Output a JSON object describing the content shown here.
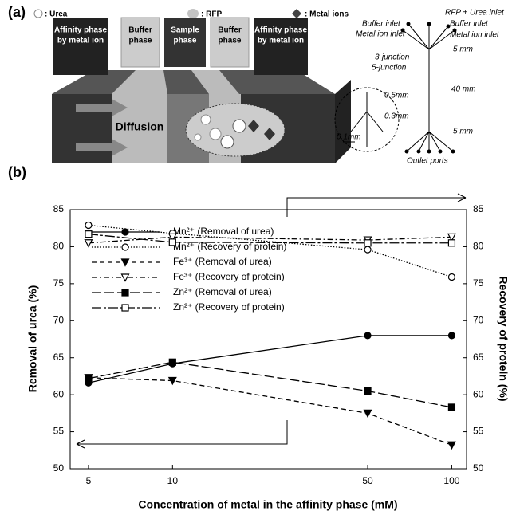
{
  "diagram": {
    "panel_label": "(a)",
    "legend": [
      ": Urea",
      ": RFP",
      ": Metal ions"
    ],
    "phases": [
      [
        "Affinity phase",
        "by metal ion"
      ],
      [
        "Buffer",
        "phase"
      ],
      [
        "Sample",
        "phase"
      ],
      [
        "Buffer",
        "phase"
      ],
      [
        "Affinity phase",
        "by metal ion"
      ]
    ],
    "flow_label": "Diffusion",
    "chip_labels": [
      "Buffer inlet",
      "Metal ion inlet",
      "RFP + Urea inlet",
      "Buffer inlet",
      "Metal ion inlet",
      "3-junction",
      "5-junction",
      "5 mm",
      "40 mm",
      "5 mm",
      "0.5mm",
      "0.3mm",
      "0.1mm",
      "Outlet ports"
    ]
  },
  "chart_data": {
    "type": "line",
    "panel_label": "(b)",
    "xlabel": "Concentration of metal in the affinity phase (mM)",
    "ylabel": "Removal of urea (%)",
    "y2label": "Recovery of protein (%)",
    "x": [
      5,
      10,
      50,
      100
    ],
    "xscale": "log",
    "xlim": [
      4.3,
      113
    ],
    "xticks": [
      5,
      10,
      50,
      100
    ],
    "ylim": [
      50,
      85
    ],
    "yticks": [
      50,
      55,
      60,
      65,
      70,
      75,
      80,
      85
    ],
    "y2lim": [
      50,
      85
    ],
    "y2ticks": [
      50,
      55,
      60,
      65,
      70,
      75,
      80,
      85
    ],
    "grid": false,
    "legend": "upper left",
    "series": [
      {
        "name": "Mn²⁺ (Removal of urea)",
        "color": "#000000",
        "marker": "circle",
        "filled": true,
        "line_style": "solid",
        "values": [
          61.6,
          64.2,
          68.0,
          68.0
        ]
      },
      {
        "name": "Mn²⁺ (Recovery of protein)",
        "color": "#000000",
        "marker": "circle",
        "filled": false,
        "line_style": "dotted",
        "axis": "y2",
        "values": [
          82.9,
          81.8,
          79.6,
          75.9
        ]
      },
      {
        "name": "Fe³⁺ (Removal of urea)",
        "color": "#000000",
        "marker": "triangle-down",
        "filled": true,
        "line_style": "dashed",
        "values": [
          62.3,
          61.9,
          57.5,
          53.2
        ]
      },
      {
        "name": "Fe³⁺ (Recovery of protein)",
        "color": "#000000",
        "marker": "triangle-down",
        "filled": false,
        "line_style": "dashdot",
        "axis": "y2",
        "values": [
          80.5,
          81.3,
          80.9,
          81.3
        ]
      },
      {
        "name": "Zn²⁺ (Removal of urea)",
        "color": "#000000",
        "marker": "square",
        "filled": true,
        "line_style": "longdash",
        "values": [
          62.2,
          64.4,
          60.5,
          58.3
        ]
      },
      {
        "name": "Zn²⁺ (Recovery of protein)",
        "color": "#000000",
        "marker": "square",
        "filled": false,
        "line_style": "longdashdot",
        "axis": "y2",
        "values": [
          81.7,
          80.6,
          80.5,
          80.5
        ]
      }
    ]
  }
}
